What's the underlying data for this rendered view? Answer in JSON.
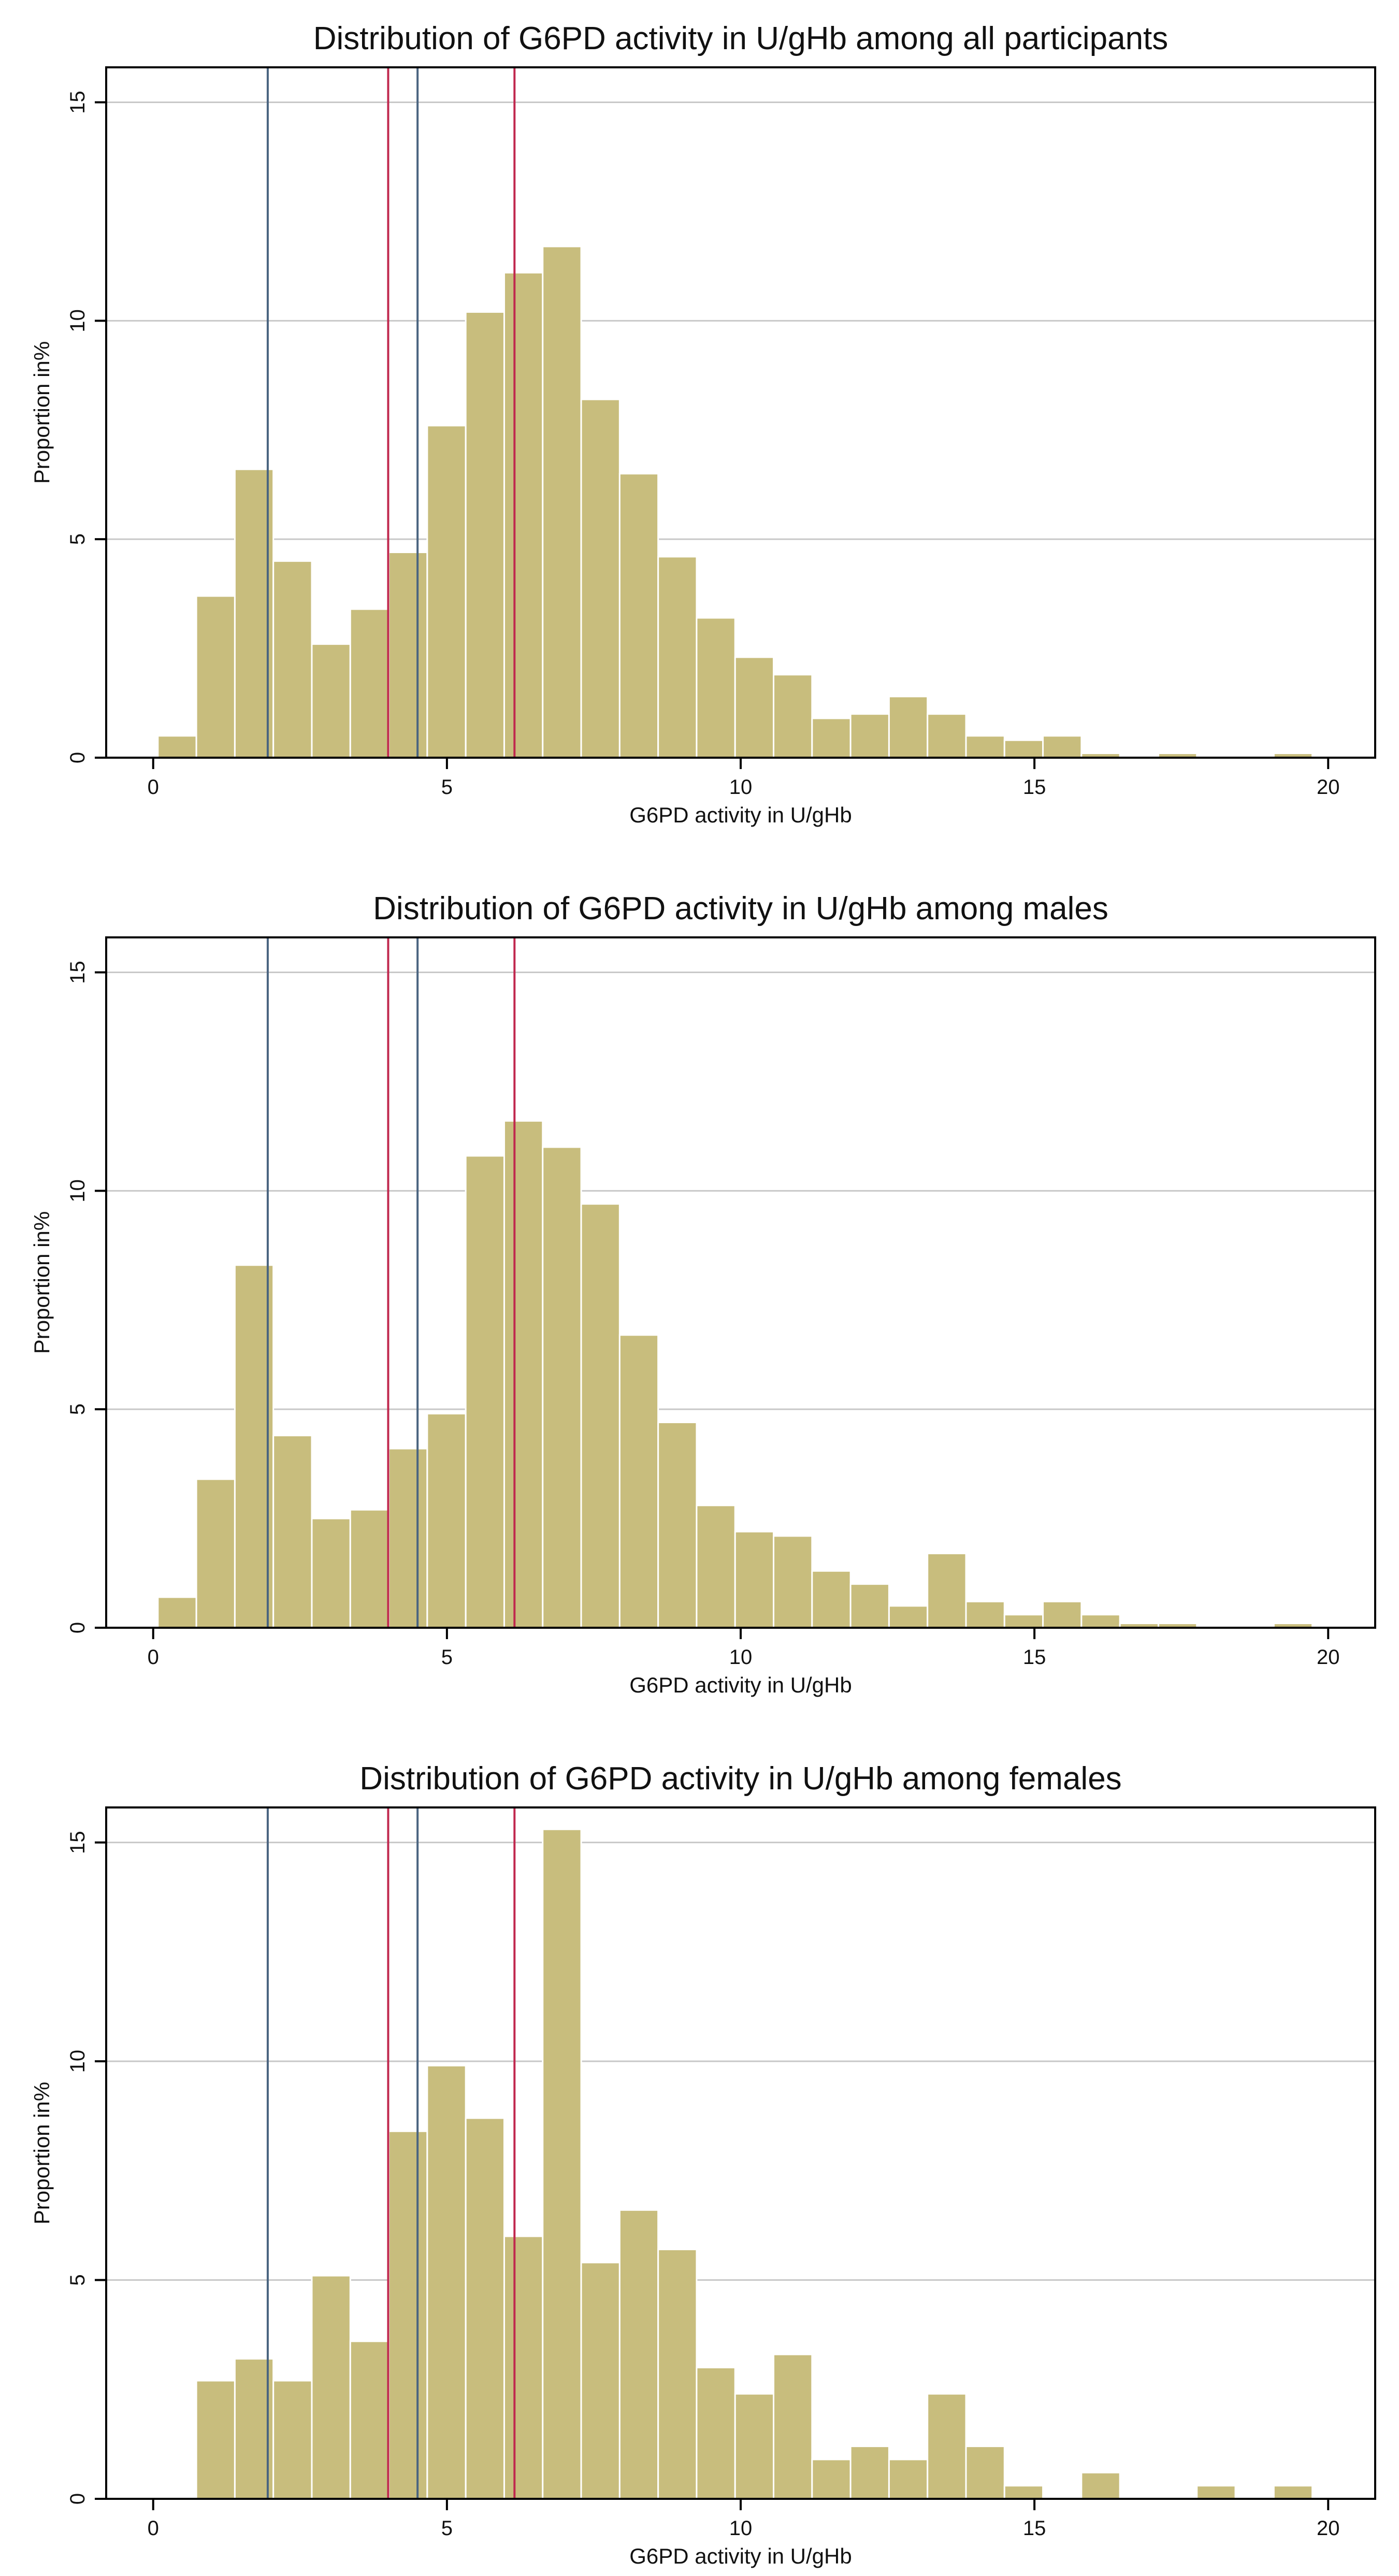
{
  "colors": {
    "bar_fill": "#c8bd7d",
    "bar_stroke": "#ffffff",
    "grid": "#c8c8c8",
    "frame": "#000000",
    "blue_line": "#4a6480",
    "red_line": "#c0284e",
    "text": "#111111"
  },
  "chart_data": [
    {
      "type": "histogram",
      "title": "Distribution of G6PD activity in U/gHb among all participants",
      "xlabel": "G6PD activity in U/gHb",
      "ylabel": "Proportion in%",
      "xlim": [
        -0.8,
        20.8
      ],
      "ylim": [
        0,
        15.8
      ],
      "xticks": [
        0,
        5,
        10,
        15,
        20
      ],
      "yticks": [
        0,
        5,
        10,
        15
      ],
      "bin_start": 0.08,
      "bin_width": 0.655,
      "values": [
        0.5,
        3.7,
        6.6,
        4.5,
        2.6,
        3.4,
        4.7,
        7.6,
        10.2,
        11.1,
        11.7,
        8.2,
        6.5,
        4.6,
        3.2,
        2.3,
        1.9,
        0.9,
        1.0,
        1.4,
        1.0,
        0.5,
        0.4,
        0.5,
        0.1,
        0.0,
        0.1,
        0.0,
        0.0,
        0.1
      ],
      "vlines_blue": [
        1.95,
        4.5
      ],
      "vlines_red": [
        4.0,
        6.15
      ]
    },
    {
      "type": "histogram",
      "title": "Distribution of G6PD activity in U/gHb among males",
      "xlabel": "G6PD activity in U/gHb",
      "ylabel": "Proportion in%",
      "xlim": [
        -0.8,
        20.8
      ],
      "ylim": [
        0,
        15.8
      ],
      "xticks": [
        0,
        5,
        10,
        15,
        20
      ],
      "yticks": [
        0,
        5,
        10,
        15
      ],
      "bin_start": 0.08,
      "bin_width": 0.655,
      "values": [
        0.7,
        3.4,
        8.3,
        4.4,
        2.5,
        2.7,
        4.1,
        4.9,
        10.8,
        11.6,
        11.0,
        9.7,
        6.7,
        4.7,
        2.8,
        2.2,
        2.1,
        1.3,
        1.0,
        0.5,
        1.7,
        0.6,
        0.3,
        0.6,
        0.3,
        0.1,
        0.1,
        0.0,
        0.0,
        0.1
      ],
      "vlines_blue": [
        1.95,
        4.5
      ],
      "vlines_red": [
        4.0,
        6.15
      ]
    },
    {
      "type": "histogram",
      "title": "Distribution of G6PD activity in U/gHb among females",
      "xlabel": "G6PD activity in U/gHb",
      "ylabel": "Proportion in%",
      "xlim": [
        -0.8,
        20.8
      ],
      "ylim": [
        0,
        15.8
      ],
      "xticks": [
        0,
        5,
        10,
        15,
        20
      ],
      "yticks": [
        0,
        5,
        10,
        15
      ],
      "bin_start": 0.08,
      "bin_width": 0.655,
      "values": [
        0.0,
        2.7,
        3.2,
        2.7,
        5.1,
        3.6,
        8.4,
        9.9,
        8.7,
        6.0,
        15.3,
        5.4,
        6.6,
        5.7,
        3.0,
        2.4,
        3.3,
        0.9,
        1.2,
        0.9,
        2.4,
        1.2,
        0.3,
        0.0,
        0.6,
        0.0,
        0.0,
        0.3,
        0.0,
        0.3
      ],
      "vlines_blue": [
        1.95,
        4.5
      ],
      "vlines_red": [
        4.0,
        6.15
      ]
    }
  ]
}
